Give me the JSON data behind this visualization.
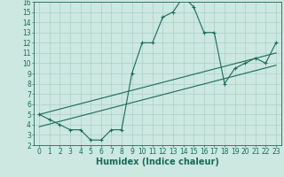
{
  "xlabel": "Humidex (Indice chaleur)",
  "ylabel": "",
  "xlim": [
    -0.5,
    23.5
  ],
  "ylim": [
    2,
    16
  ],
  "xticks": [
    0,
    1,
    2,
    3,
    4,
    5,
    6,
    7,
    8,
    9,
    10,
    11,
    12,
    13,
    14,
    15,
    16,
    17,
    18,
    19,
    20,
    21,
    22,
    23
  ],
  "yticks": [
    2,
    3,
    4,
    5,
    6,
    7,
    8,
    9,
    10,
    11,
    12,
    13,
    14,
    15,
    16
  ],
  "bg_color": "#cce8e0",
  "grid_color": "#aacfc8",
  "line_color": "#1a6b5a",
  "curve_x": [
    0,
    1,
    2,
    3,
    4,
    5,
    6,
    7,
    8,
    9,
    10,
    11,
    12,
    13,
    14,
    15,
    16,
    17,
    18,
    19,
    20,
    21,
    22,
    23
  ],
  "curve_y": [
    5.0,
    4.5,
    4.0,
    3.5,
    3.5,
    2.5,
    2.5,
    3.5,
    3.5,
    9.0,
    12.0,
    12.0,
    14.5,
    15.0,
    16.5,
    15.5,
    13.0,
    13.0,
    8.0,
    9.5,
    10.0,
    10.5,
    10.0,
    12.0
  ],
  "trend1_x": [
    0,
    23
  ],
  "trend1_y": [
    5.0,
    11.0
  ],
  "trend2_x": [
    0,
    23
  ],
  "trend2_y": [
    3.8,
    9.8
  ],
  "tick_fontsize": 5.5,
  "xlabel_fontsize": 7,
  "title_fontsize": 7
}
